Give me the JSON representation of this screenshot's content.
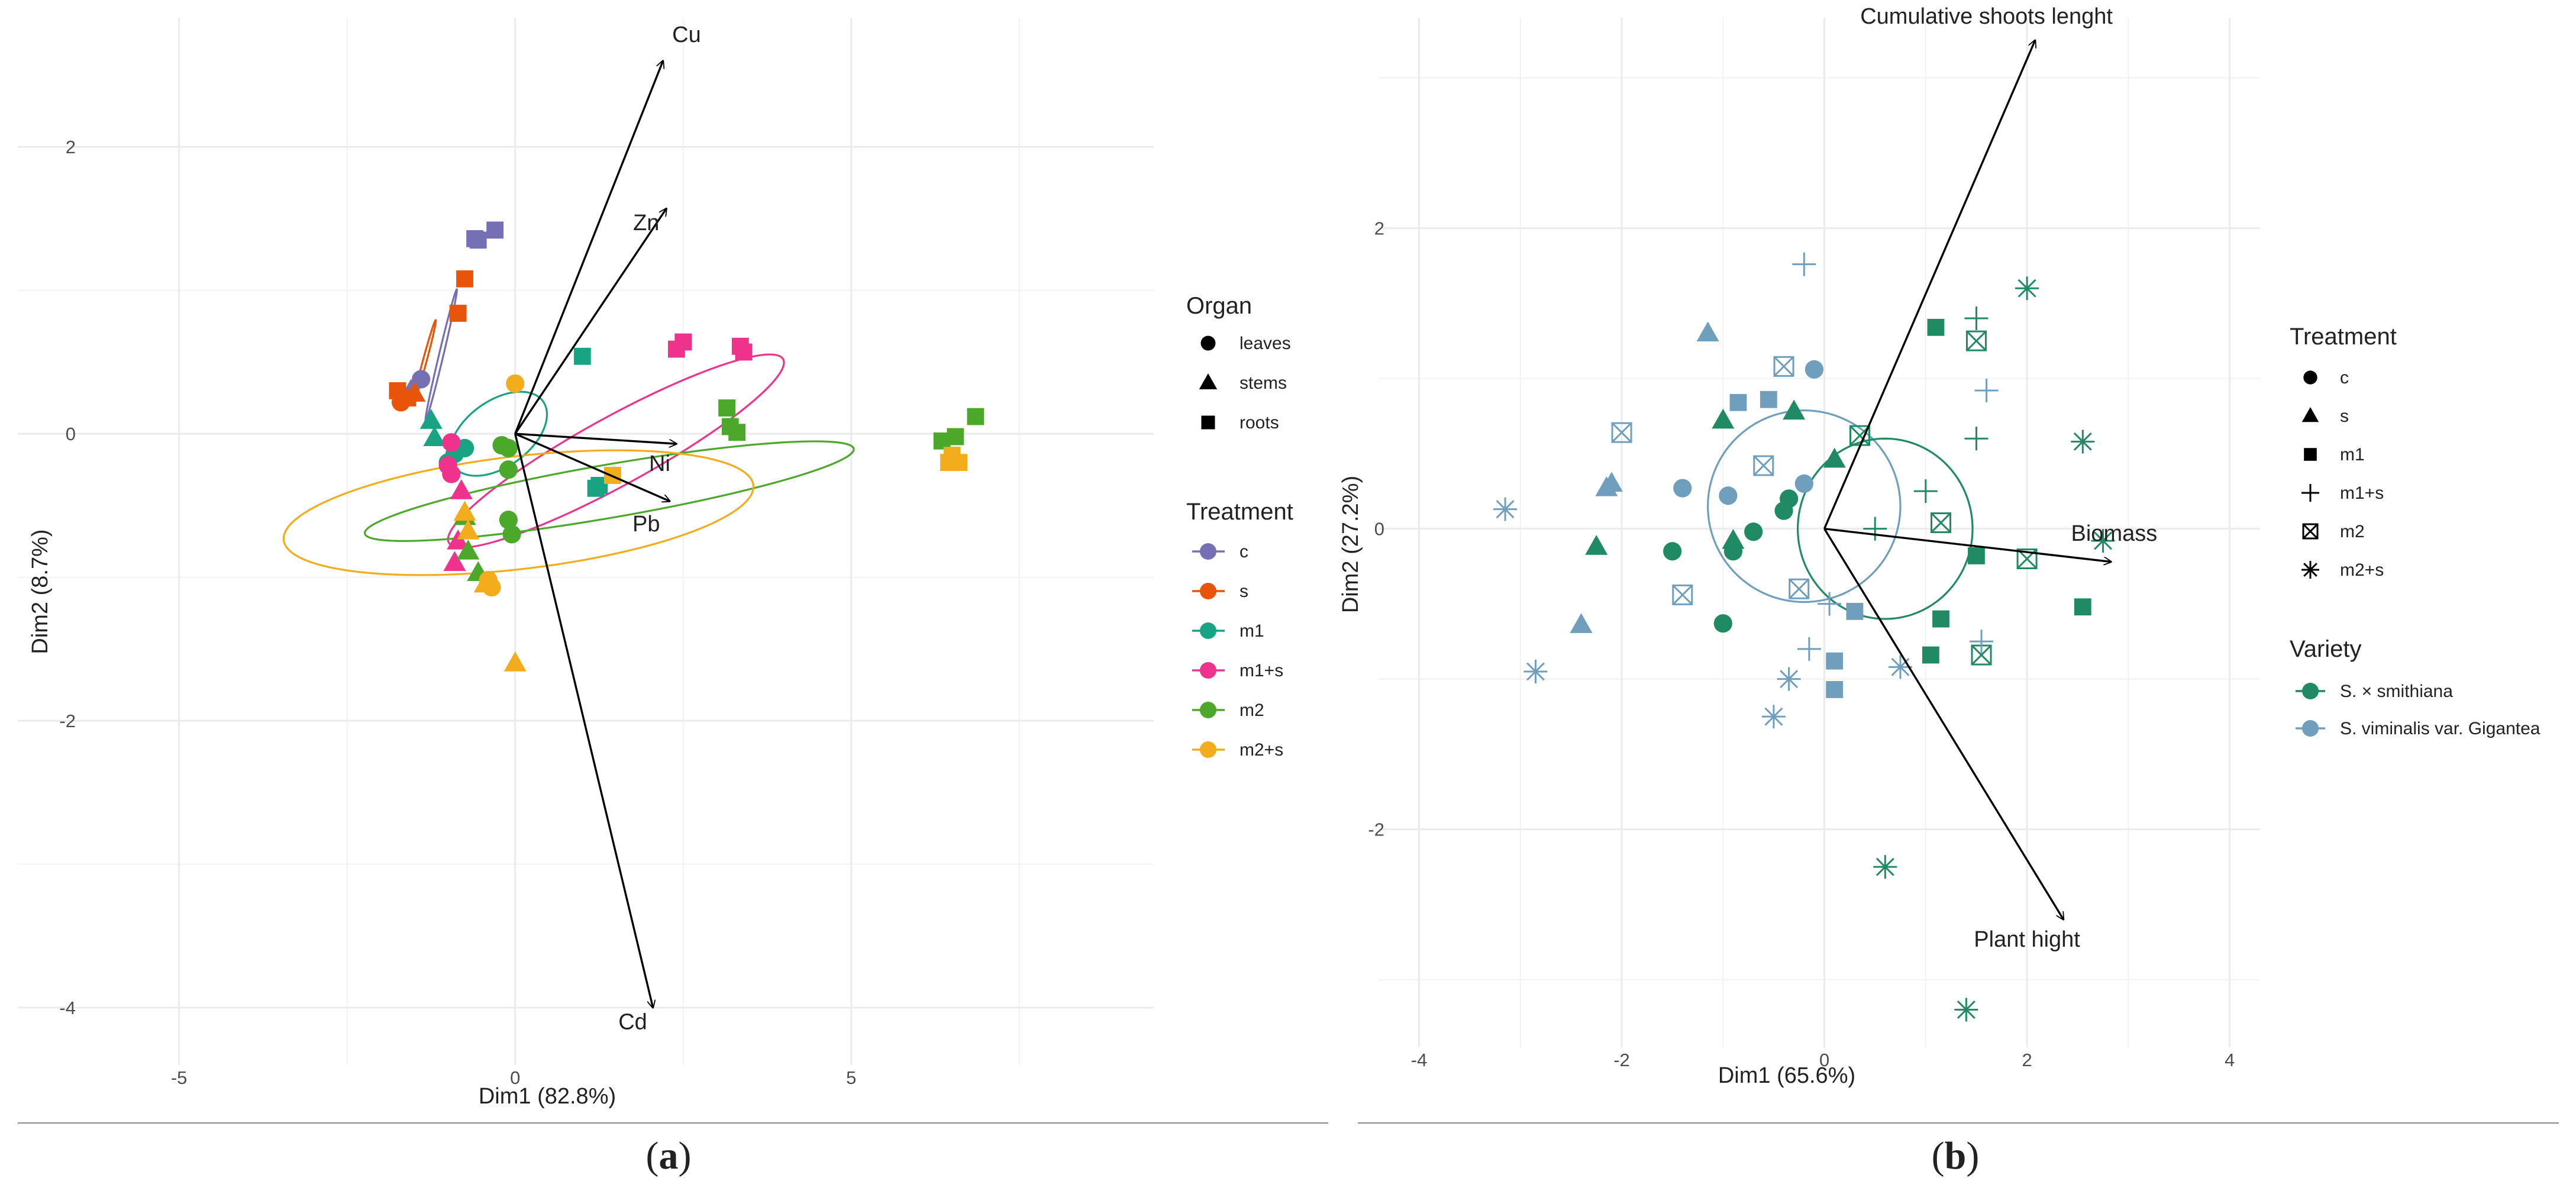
{
  "figure": {
    "panel_a_label": {
      "open": "(",
      "letter": "a",
      "close": ")"
    },
    "panel_b_label": {
      "open": "(",
      "letter": "b",
      "close": ")"
    }
  },
  "colors": {
    "c": "#7570b3",
    "s": "#e7540a",
    "m1": "#18a383",
    "m1+s": "#ef338d",
    "m2": "#4ca82a",
    "m2+s": "#f2ac1c",
    "smith": "#1f8a63",
    "vim": "#6f9fbd",
    "arrow": "#000000",
    "grid": "#ebebeb"
  },
  "chart_data": [
    {
      "type": "scatter",
      "subtype": "pca-biplot",
      "title": "",
      "xlabel": "Dim1 (82.8%)",
      "ylabel": "Dim2 (8.7%)",
      "xlim": [
        -7.4,
        9.5
      ],
      "ylim": [
        -4.4,
        2.9
      ],
      "xticks": [
        -5,
        0,
        5
      ],
      "yticks": [
        -4,
        -2,
        0,
        2
      ],
      "tick_labels_x": [
        "-5",
        "0",
        "5"
      ],
      "tick_labels_y": [
        "-4",
        "-2",
        "0",
        "2"
      ],
      "grid": true,
      "legend": {
        "organ_title": "Organ",
        "organ_items": [
          {
            "label": "leaves",
            "shape": "circle"
          },
          {
            "label": "stems",
            "shape": "triangle"
          },
          {
            "label": "roots",
            "shape": "square"
          }
        ],
        "treatment_title": "Treatment",
        "treatment_items": [
          {
            "label": "c",
            "key": "c"
          },
          {
            "label": "s",
            "key": "s"
          },
          {
            "label": "m1",
            "key": "m1"
          },
          {
            "label": "m1+s",
            "key": "m1+s"
          },
          {
            "label": "m2",
            "key": "m2"
          },
          {
            "label": "m2+s",
            "key": "m2+s"
          }
        ]
      },
      "vectors": [
        {
          "label": "Cu",
          "x": 2.2,
          "y": 2.6,
          "lx": 2.55,
          "ly": 2.73
        },
        {
          "label": "Zn",
          "x": 2.25,
          "y": 1.57,
          "lx": 1.95,
          "ly": 1.42
        },
        {
          "label": "Ni",
          "x": 2.4,
          "y": -0.07,
          "lx": 2.15,
          "ly": -0.26
        },
        {
          "label": "Pb",
          "x": 2.3,
          "y": -0.47,
          "lx": 1.95,
          "ly": -0.68
        },
        {
          "label": "Cd",
          "x": 2.05,
          "y": -4.0,
          "lx": 1.75,
          "ly": -4.15
        }
      ],
      "ellipses": [
        {
          "group": "c",
          "cx": -1.1,
          "cy": 0.55,
          "rx": 2.05,
          "ry": 0.12,
          "angle": 63
        },
        {
          "group": "s",
          "cx": -1.35,
          "cy": 0.5,
          "rx": 1.35,
          "ry": 0.1,
          "angle": 60
        },
        {
          "group": "m1",
          "cx": -0.25,
          "cy": 0.0,
          "rx": 2.95,
          "ry": 1.02,
          "angle": 12
        },
        {
          "group": "m1+s",
          "cx": 1.5,
          "cy": -0.12,
          "rx": 10.3,
          "ry": 1.05,
          "angle": 14
        },
        {
          "group": "m2",
          "cx": 1.4,
          "cy": -0.4,
          "rx": 14.6,
          "ry": 0.75,
          "angle": 4.6
        },
        {
          "group": "m2+s",
          "cx": 0.05,
          "cy": -0.55,
          "rx": 14.0,
          "ry": 1.58,
          "angle": 3
        }
      ],
      "points": [
        {
          "x": -0.3,
          "y": 1.42,
          "shape": "square",
          "group": "c"
        },
        {
          "x": -0.6,
          "y": 1.36,
          "shape": "square",
          "group": "c"
        },
        {
          "x": -0.55,
          "y": 1.35,
          "shape": "square",
          "group": "c"
        },
        {
          "x": -1.4,
          "y": 0.38,
          "shape": "circle",
          "group": "c"
        },
        {
          "x": -1.55,
          "y": 0.3,
          "shape": "triangle",
          "group": "c"
        },
        {
          "x": -0.75,
          "y": 1.08,
          "shape": "square",
          "group": "s"
        },
        {
          "x": -0.85,
          "y": 0.84,
          "shape": "square",
          "group": "s"
        },
        {
          "x": -1.75,
          "y": 0.3,
          "shape": "square",
          "group": "s"
        },
        {
          "x": -1.6,
          "y": 0.25,
          "shape": "square",
          "group": "s"
        },
        {
          "x": -1.7,
          "y": 0.22,
          "shape": "circle",
          "group": "s"
        },
        {
          "x": -1.5,
          "y": 0.28,
          "shape": "triangle",
          "group": "s"
        },
        {
          "x": 1.0,
          "y": 0.54,
          "shape": "square",
          "group": "m1"
        },
        {
          "x": 1.2,
          "y": -0.38,
          "shape": "square",
          "group": "m1"
        },
        {
          "x": 1.25,
          "y": -0.36,
          "shape": "square",
          "group": "m1"
        },
        {
          "x": -1.25,
          "y": 0.09,
          "shape": "triangle",
          "group": "m1"
        },
        {
          "x": -1.2,
          "y": -0.03,
          "shape": "triangle",
          "group": "m1"
        },
        {
          "x": -0.75,
          "y": -0.1,
          "shape": "circle",
          "group": "m1"
        },
        {
          "x": -0.9,
          "y": -0.14,
          "shape": "circle",
          "group": "m1"
        },
        {
          "x": -1.0,
          "y": -0.2,
          "shape": "circle",
          "group": "m1"
        },
        {
          "x": 2.5,
          "y": 0.64,
          "shape": "square",
          "group": "m1+s"
        },
        {
          "x": 2.4,
          "y": 0.59,
          "shape": "square",
          "group": "m1+s"
        },
        {
          "x": 3.35,
          "y": 0.61,
          "shape": "square",
          "group": "m1+s"
        },
        {
          "x": 3.4,
          "y": 0.57,
          "shape": "square",
          "group": "m1+s"
        },
        {
          "x": -0.95,
          "y": -0.06,
          "shape": "circle",
          "group": "m1+s"
        },
        {
          "x": -0.95,
          "y": -0.28,
          "shape": "circle",
          "group": "m1+s"
        },
        {
          "x": -1.0,
          "y": -0.22,
          "shape": "circle",
          "group": "m1+s"
        },
        {
          "x": -0.8,
          "y": -0.4,
          "shape": "triangle",
          "group": "m1+s"
        },
        {
          "x": -0.85,
          "y": -0.75,
          "shape": "triangle",
          "group": "m1+s"
        },
        {
          "x": -0.9,
          "y": -0.9,
          "shape": "triangle",
          "group": "m1+s"
        },
        {
          "x": 3.15,
          "y": 0.18,
          "shape": "square",
          "group": "m2"
        },
        {
          "x": 3.2,
          "y": 0.05,
          "shape": "square",
          "group": "m2"
        },
        {
          "x": 3.3,
          "y": 0.01,
          "shape": "square",
          "group": "m2"
        },
        {
          "x": 6.35,
          "y": -0.05,
          "shape": "square",
          "group": "m2"
        },
        {
          "x": 6.85,
          "y": 0.12,
          "shape": "square",
          "group": "m2"
        },
        {
          "x": 6.55,
          "y": -0.02,
          "shape": "square",
          "group": "m2"
        },
        {
          "x": -0.2,
          "y": -0.08,
          "shape": "circle",
          "group": "m2"
        },
        {
          "x": -0.1,
          "y": -0.1,
          "shape": "circle",
          "group": "m2"
        },
        {
          "x": -0.1,
          "y": -0.25,
          "shape": "circle",
          "group": "m2"
        },
        {
          "x": -0.1,
          "y": -0.6,
          "shape": "circle",
          "group": "m2"
        },
        {
          "x": -0.05,
          "y": -0.7,
          "shape": "circle",
          "group": "m2"
        },
        {
          "x": -0.7,
          "y": -0.82,
          "shape": "triangle",
          "group": "m2"
        },
        {
          "x": -0.55,
          "y": -0.97,
          "shape": "triangle",
          "group": "m2"
        },
        {
          "x": -0.75,
          "y": -0.58,
          "shape": "triangle",
          "group": "m2"
        },
        {
          "x": 1.45,
          "y": -0.29,
          "shape": "square",
          "group": "m2+s"
        },
        {
          "x": 6.5,
          "y": -0.15,
          "shape": "square",
          "group": "m2+s"
        },
        {
          "x": 6.6,
          "y": -0.2,
          "shape": "square",
          "group": "m2+s"
        },
        {
          "x": 6.45,
          "y": -0.2,
          "shape": "square",
          "group": "m2+s"
        },
        {
          "x": 0.0,
          "y": 0.35,
          "shape": "circle",
          "group": "m2+s"
        },
        {
          "x": -0.35,
          "y": -1.07,
          "shape": "circle",
          "group": "m2+s"
        },
        {
          "x": -0.4,
          "y": -1.02,
          "shape": "circle",
          "group": "m2+s"
        },
        {
          "x": -0.75,
          "y": -0.55,
          "shape": "triangle",
          "group": "m2+s"
        },
        {
          "x": -0.7,
          "y": -0.68,
          "shape": "triangle",
          "group": "m2+s"
        },
        {
          "x": -0.45,
          "y": -1.05,
          "shape": "triangle",
          "group": "m2+s"
        },
        {
          "x": 0.0,
          "y": -1.6,
          "shape": "triangle",
          "group": "m2+s"
        }
      ]
    },
    {
      "type": "scatter",
      "subtype": "pca-biplot",
      "title": "",
      "xlabel": "Dim1 (65.6%)",
      "ylabel": "Dim2 (27.2%)",
      "xlim": [
        -4.4,
        4.3
      ],
      "ylim": [
        -3.45,
        3.4
      ],
      "xticks": [
        -4,
        -2,
        0,
        2,
        4
      ],
      "yticks": [
        -2,
        0,
        2
      ],
      "tick_labels_x": [
        "-4",
        "-2",
        "0",
        "2",
        "4"
      ],
      "tick_labels_y": [
        "-2",
        "0",
        "2"
      ],
      "grid": true,
      "legend": {
        "treatment_title": "Treatment",
        "treatment_items": [
          {
            "label": "c",
            "shape": "circle"
          },
          {
            "label": "s",
            "shape": "triangle"
          },
          {
            "label": "m1",
            "shape": "square"
          },
          {
            "label": "m1+s",
            "shape": "plus"
          },
          {
            "label": "m2",
            "shape": "boxx"
          },
          {
            "label": "m2+s",
            "shape": "star"
          }
        ],
        "variety_title": "Variety",
        "variety_items": [
          {
            "label": "S. × smithiana",
            "key": "smith"
          },
          {
            "label": "S. viminalis var. Gigantea",
            "key": "vim"
          }
        ]
      },
      "vectors": [
        {
          "label": "Cumulative shoots lenght",
          "x": 2.08,
          "y": 3.25,
          "lx": 1.6,
          "ly": 3.36
        },
        {
          "label": "Biomass",
          "x": 2.83,
          "y": -0.22,
          "lx": 2.86,
          "ly": -0.08
        },
        {
          "label": "Plant hight",
          "x": 2.36,
          "y": -2.6,
          "lx": 2.0,
          "ly": -2.78
        }
      ],
      "ellipses": [
        {
          "group": "vim",
          "cx": -0.2,
          "cy": 0.15,
          "rx": 3.8,
          "ry": 2.55,
          "angle": 0
        },
        {
          "group": "smith",
          "cx": 0.6,
          "cy": 0.0,
          "rx": 3.45,
          "ry": 2.4,
          "angle": 0
        }
      ],
      "points": [
        {
          "x": -1.0,
          "y": -0.63,
          "shape": "circle",
          "group": "smith"
        },
        {
          "x": -0.9,
          "y": -0.15,
          "shape": "circle",
          "group": "smith"
        },
        {
          "x": -0.7,
          "y": -0.02,
          "shape": "circle",
          "group": "smith"
        },
        {
          "x": -0.4,
          "y": 0.12,
          "shape": "circle",
          "group": "smith"
        },
        {
          "x": -0.35,
          "y": 0.2,
          "shape": "circle",
          "group": "smith"
        },
        {
          "x": -1.5,
          "y": -0.15,
          "shape": "circle",
          "group": "smith"
        },
        {
          "x": -2.25,
          "y": -0.12,
          "shape": "triangle",
          "group": "smith"
        },
        {
          "x": -1.0,
          "y": 0.72,
          "shape": "triangle",
          "group": "smith"
        },
        {
          "x": -0.9,
          "y": -0.08,
          "shape": "triangle",
          "group": "smith"
        },
        {
          "x": -0.3,
          "y": 0.78,
          "shape": "triangle",
          "group": "smith"
        },
        {
          "x": 0.1,
          "y": 0.46,
          "shape": "triangle",
          "group": "smith"
        },
        {
          "x": 1.1,
          "y": 1.34,
          "shape": "square",
          "group": "smith"
        },
        {
          "x": 1.5,
          "y": -0.18,
          "shape": "square",
          "group": "smith"
        },
        {
          "x": 1.15,
          "y": -0.6,
          "shape": "square",
          "group": "smith"
        },
        {
          "x": 1.05,
          "y": -0.84,
          "shape": "square",
          "group": "smith"
        },
        {
          "x": 2.55,
          "y": -0.52,
          "shape": "square",
          "group": "smith"
        },
        {
          "x": 1.5,
          "y": 0.6,
          "shape": "plus",
          "group": "smith"
        },
        {
          "x": 1.5,
          "y": 1.4,
          "shape": "plus",
          "group": "smith"
        },
        {
          "x": 1.0,
          "y": 0.25,
          "shape": "plus",
          "group": "smith"
        },
        {
          "x": 0.5,
          "y": 0.0,
          "shape": "plus",
          "group": "smith"
        },
        {
          "x": 1.5,
          "y": 1.25,
          "shape": "boxx",
          "group": "smith"
        },
        {
          "x": 0.35,
          "y": 0.62,
          "shape": "boxx",
          "group": "smith"
        },
        {
          "x": 1.15,
          "y": 0.04,
          "shape": "boxx",
          "group": "smith"
        },
        {
          "x": 2.0,
          "y": -0.2,
          "shape": "boxx",
          "group": "smith"
        },
        {
          "x": 1.55,
          "y": -0.84,
          "shape": "boxx",
          "group": "smith"
        },
        {
          "x": 2.0,
          "y": 1.6,
          "shape": "star",
          "group": "smith"
        },
        {
          "x": 2.55,
          "y": 0.58,
          "shape": "star",
          "group": "smith"
        },
        {
          "x": 0.6,
          "y": -2.25,
          "shape": "star",
          "group": "smith"
        },
        {
          "x": 1.4,
          "y": -3.2,
          "shape": "star",
          "group": "smith"
        },
        {
          "x": 2.75,
          "y": -0.08,
          "shape": "star",
          "group": "smith"
        },
        {
          "x": -1.4,
          "y": 0.27,
          "shape": "circle",
          "group": "vim"
        },
        {
          "x": -0.95,
          "y": 0.22,
          "shape": "circle",
          "group": "vim"
        },
        {
          "x": -0.1,
          "y": 1.06,
          "shape": "circle",
          "group": "vim"
        },
        {
          "x": -0.2,
          "y": 0.3,
          "shape": "circle",
          "group": "vim"
        },
        {
          "x": -2.1,
          "y": 0.3,
          "shape": "triangle",
          "group": "vim"
        },
        {
          "x": -1.15,
          "y": 1.3,
          "shape": "triangle",
          "group": "vim"
        },
        {
          "x": -2.4,
          "y": -0.64,
          "shape": "triangle",
          "group": "vim"
        },
        {
          "x": -2.15,
          "y": 0.27,
          "shape": "triangle",
          "group": "vim"
        },
        {
          "x": -0.85,
          "y": 0.84,
          "shape": "square",
          "group": "vim"
        },
        {
          "x": -0.55,
          "y": 0.86,
          "shape": "square",
          "group": "vim"
        },
        {
          "x": 0.3,
          "y": -0.55,
          "shape": "square",
          "group": "vim"
        },
        {
          "x": 0.1,
          "y": -0.88,
          "shape": "square",
          "group": "vim"
        },
        {
          "x": 0.1,
          "y": -1.07,
          "shape": "square",
          "group": "vim"
        },
        {
          "x": -0.2,
          "y": 1.76,
          "shape": "plus",
          "group": "vim"
        },
        {
          "x": 1.6,
          "y": 0.92,
          "shape": "plus",
          "group": "vim"
        },
        {
          "x": 1.55,
          "y": -0.75,
          "shape": "plus",
          "group": "vim"
        },
        {
          "x": 0.05,
          "y": -0.5,
          "shape": "plus",
          "group": "vim"
        },
        {
          "x": -0.15,
          "y": -0.8,
          "shape": "plus",
          "group": "vim"
        },
        {
          "x": -2.0,
          "y": 0.64,
          "shape": "boxx",
          "group": "vim"
        },
        {
          "x": -1.4,
          "y": -0.44,
          "shape": "boxx",
          "group": "vim"
        },
        {
          "x": -0.4,
          "y": 1.08,
          "shape": "boxx",
          "group": "vim"
        },
        {
          "x": -0.6,
          "y": 0.42,
          "shape": "boxx",
          "group": "vim"
        },
        {
          "x": -0.25,
          "y": -0.4,
          "shape": "boxx",
          "group": "vim"
        },
        {
          "x": -3.15,
          "y": 0.13,
          "shape": "star",
          "group": "vim"
        },
        {
          "x": -2.85,
          "y": -0.95,
          "shape": "star",
          "group": "vim"
        },
        {
          "x": -0.5,
          "y": -1.25,
          "shape": "star",
          "group": "vim"
        },
        {
          "x": -0.35,
          "y": -1.0,
          "shape": "star",
          "group": "vim"
        },
        {
          "x": 0.75,
          "y": -0.92,
          "shape": "star",
          "group": "vim"
        }
      ]
    }
  ]
}
